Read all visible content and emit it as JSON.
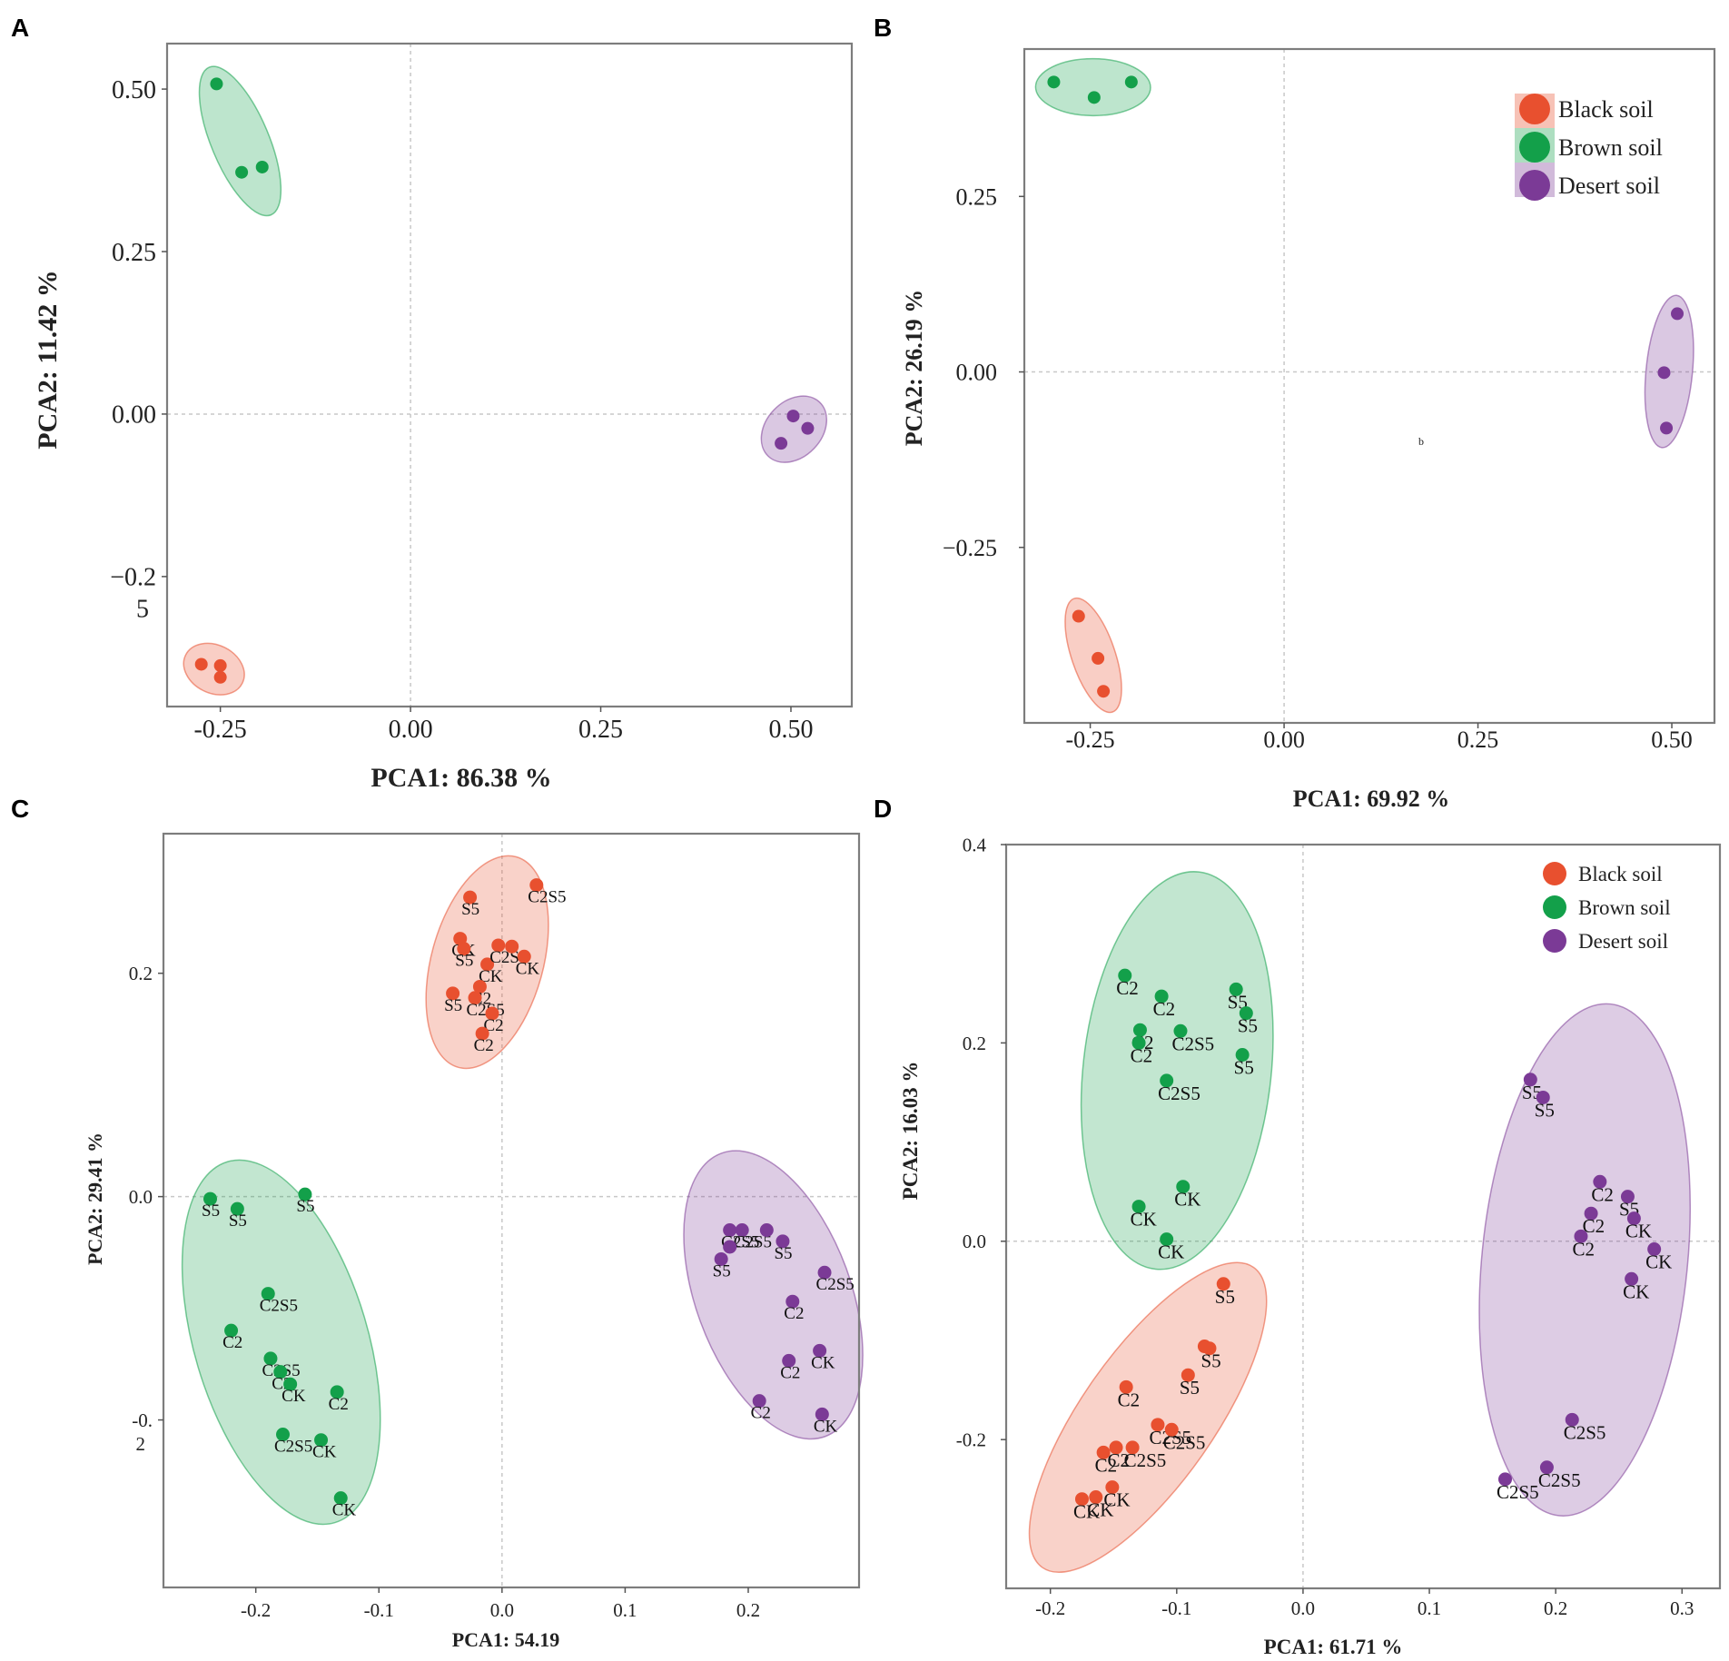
{
  "colors": {
    "black_soil": "#e8502f",
    "brown_soil": "#13a04a",
    "desert_soil": "#7b3a96"
  },
  "chart_data": [
    {
      "panel": "A",
      "type": "scatter",
      "xlabel": "PCA1: 86.38 %",
      "ylabel": "PCA2: 11.42 %",
      "xlim": [
        -0.32,
        0.58
      ],
      "ylim": [
        -0.45,
        0.57
      ],
      "xticks": [
        -0.25,
        0.0,
        0.25,
        0.5
      ],
      "xtick_labels": [
        "-0.25",
        "0.00",
        "0.25",
        "0.50"
      ],
      "yticks": [
        0.5,
        0.25,
        0.0,
        -0.25
      ],
      "ytick_labels": [
        "0.50",
        "0.25",
        "0.00",
        "−0.2\n5"
      ],
      "legend": null,
      "series": [
        {
          "name": "Black soil",
          "color_key": "black_soil",
          "points": [
            [
              -0.275,
              -0.385
            ],
            [
              -0.25,
              -0.387
            ],
            [
              -0.25,
              -0.405
            ]
          ]
        },
        {
          "name": "Brown soil",
          "color_key": "brown_soil",
          "points": [
            [
              -0.255,
              0.508
            ],
            [
              -0.222,
              0.372
            ],
            [
              -0.195,
              0.38
            ]
          ]
        },
        {
          "name": "Desert soil",
          "color_key": "desert_soil",
          "points": [
            [
              0.503,
              -0.003
            ],
            [
              0.522,
              -0.022
            ],
            [
              0.487,
              -0.045
            ]
          ]
        }
      ]
    },
    {
      "panel": "B",
      "type": "scatter",
      "xlabel": "PCA1: 69.92 %",
      "ylabel": "PCA2: 26.19 %",
      "xlim": [
        -0.335,
        0.555
      ],
      "ylim": [
        -0.5,
        0.46
      ],
      "xticks": [
        -0.25,
        0.0,
        0.25,
        0.5
      ],
      "xtick_labels": [
        "-0.25",
        "0.00",
        "0.25",
        "0.50"
      ],
      "yticks": [
        0.25,
        0.0,
        -0.25
      ],
      "ytick_labels": [
        "0.25",
        "0.00",
        "−0.25"
      ],
      "stray_text": "b",
      "legend": {
        "position": "top-right",
        "entries": [
          "Black soil",
          "Brown soil",
          "Desert soil"
        ]
      },
      "series": [
        {
          "name": "Black soil",
          "color_key": "black_soil",
          "points": [
            [
              -0.265,
              -0.348
            ],
            [
              -0.24,
              -0.408
            ],
            [
              -0.233,
              -0.455
            ]
          ]
        },
        {
          "name": "Brown soil",
          "color_key": "brown_soil",
          "points": [
            [
              -0.297,
              0.413
            ],
            [
              -0.245,
              0.391
            ],
            [
              -0.197,
              0.413
            ]
          ]
        },
        {
          "name": "Desert soil",
          "color_key": "desert_soil",
          "points": [
            [
              0.507,
              0.083
            ],
            [
              0.49,
              -0.001
            ],
            [
              0.493,
              -0.08
            ]
          ]
        }
      ]
    },
    {
      "panel": "C",
      "type": "scatter",
      "xlabel": "PCA1: 54.19",
      "ylabel": "PCA2: 29.41 %",
      "xlim": [
        -0.275,
        0.29
      ],
      "ylim": [
        -0.35,
        0.325
      ],
      "xticks": [
        -0.2,
        -0.1,
        0.0,
        0.1,
        0.2
      ],
      "xtick_labels": [
        "-0.2",
        "-0.1",
        "0.0",
        "0.1",
        "0.2"
      ],
      "yticks": [
        0.2,
        0.0,
        -0.2
      ],
      "ytick_labels": [
        "0.2",
        "0.0",
        "-0.\n2"
      ],
      "legend": null,
      "series": [
        {
          "name": "Black soil",
          "color_key": "black_soil",
          "points": [
            {
              "x": -0.026,
              "y": 0.268,
              "label": "S5"
            },
            {
              "x": 0.028,
              "y": 0.279,
              "label": "C2S5"
            },
            {
              "x": -0.034,
              "y": 0.231,
              "label": "CK"
            },
            {
              "x": -0.031,
              "y": 0.222,
              "label": "S5"
            },
            {
              "x": -0.012,
              "y": 0.208,
              "label": "CK"
            },
            {
              "x": -0.003,
              "y": 0.225,
              "label": "C2S5"
            },
            {
              "x": 0.008,
              "y": 0.224,
              "label": ""
            },
            {
              "x": 0.018,
              "y": 0.215,
              "label": "CK"
            },
            {
              "x": -0.018,
              "y": 0.188,
              "label": "C2"
            },
            {
              "x": -0.04,
              "y": 0.182,
              "label": "S5"
            },
            {
              "x": -0.022,
              "y": 0.178,
              "label": "C2S5"
            },
            {
              "x": -0.008,
              "y": 0.164,
              "label": "C2"
            },
            {
              "x": -0.016,
              "y": 0.146,
              "label": "C2"
            }
          ]
        },
        {
          "name": "Brown soil",
          "color_key": "brown_soil",
          "points": [
            {
              "x": -0.237,
              "y": -0.002,
              "label": "S5"
            },
            {
              "x": -0.16,
              "y": 0.002,
              "label": "S5"
            },
            {
              "x": -0.215,
              "y": -0.011,
              "label": "S5"
            },
            {
              "x": -0.19,
              "y": -0.087,
              "label": "C2S5"
            },
            {
              "x": -0.22,
              "y": -0.12,
              "label": "C2"
            },
            {
              "x": -0.188,
              "y": -0.145,
              "label": "C2S5"
            },
            {
              "x": -0.18,
              "y": -0.157,
              "label": "C2"
            },
            {
              "x": -0.172,
              "y": -0.168,
              "label": "CK"
            },
            {
              "x": -0.134,
              "y": -0.175,
              "label": "C2"
            },
            {
              "x": -0.178,
              "y": -0.213,
              "label": "C2S5"
            },
            {
              "x": -0.147,
              "y": -0.218,
              "label": "CK"
            },
            {
              "x": -0.131,
              "y": -0.27,
              "label": "CK"
            }
          ]
        },
        {
          "name": "Desert soil",
          "color_key": "desert_soil",
          "points": [
            {
              "x": 0.185,
              "y": -0.03,
              "label": "C2S5"
            },
            {
              "x": 0.195,
              "y": -0.03,
              "label": "C2S5"
            },
            {
              "x": 0.215,
              "y": -0.03,
              "label": ""
            },
            {
              "x": 0.228,
              "y": -0.04,
              "label": "S5"
            },
            {
              "x": 0.178,
              "y": -0.056,
              "label": "S5"
            },
            {
              "x": 0.185,
              "y": -0.045,
              "label": ""
            },
            {
              "x": 0.262,
              "y": -0.068,
              "label": "C2S5"
            },
            {
              "x": 0.236,
              "y": -0.094,
              "label": "C2"
            },
            {
              "x": 0.258,
              "y": -0.138,
              "label": "CK"
            },
            {
              "x": 0.233,
              "y": -0.147,
              "label": "C2"
            },
            {
              "x": 0.209,
              "y": -0.183,
              "label": "C2"
            },
            {
              "x": 0.26,
              "y": -0.195,
              "label": "CK"
            }
          ]
        }
      ]
    },
    {
      "panel": "D",
      "type": "scatter",
      "xlabel": "PCA1: 61.71 %",
      "ylabel": "PCA2: 16.03 %",
      "xlim": [
        -0.235,
        0.33
      ],
      "ylim": [
        -0.35,
        0.4
      ],
      "xticks": [
        -0.2,
        -0.1,
        0.0,
        0.1,
        0.2,
        0.3
      ],
      "xtick_labels": [
        "-0.2",
        "-0.1",
        "0.0",
        "0.1",
        "0.2",
        "0.3"
      ],
      "yticks": [
        0.4,
        0.2,
        0.0,
        -0.2
      ],
      "ytick_labels": [
        "0.4",
        "0.2",
        "0.0",
        "-0.2"
      ],
      "legend": {
        "position": "top-right",
        "entries": [
          "Black soil",
          "Brown soil",
          "Desert soil"
        ]
      },
      "series": [
        {
          "name": "Black soil",
          "color_key": "black_soil",
          "points": [
            {
              "x": -0.063,
              "y": -0.043,
              "label": "S5"
            },
            {
              "x": -0.074,
              "y": -0.108,
              "label": "S5"
            },
            {
              "x": -0.078,
              "y": -0.106,
              "label": ""
            },
            {
              "x": -0.091,
              "y": -0.135,
              "label": "S5"
            },
            {
              "x": -0.14,
              "y": -0.147,
              "label": "C2"
            },
            {
              "x": -0.115,
              "y": -0.185,
              "label": "C2S5"
            },
            {
              "x": -0.104,
              "y": -0.19,
              "label": "C2S5"
            },
            {
              "x": -0.135,
              "y": -0.208,
              "label": "C2S5"
            },
            {
              "x": -0.158,
              "y": -0.213,
              "label": "C2"
            },
            {
              "x": -0.148,
              "y": -0.208,
              "label": "C2"
            },
            {
              "x": -0.151,
              "y": -0.248,
              "label": "CK"
            },
            {
              "x": -0.164,
              "y": -0.258,
              "label": "CK"
            },
            {
              "x": -0.175,
              "y": -0.26,
              "label": "CK"
            }
          ]
        },
        {
          "name": "Brown soil",
          "color_key": "brown_soil",
          "points": [
            {
              "x": -0.141,
              "y": 0.268,
              "label": "C2"
            },
            {
              "x": -0.112,
              "y": 0.247,
              "label": "C2"
            },
            {
              "x": -0.053,
              "y": 0.254,
              "label": "S5"
            },
            {
              "x": -0.045,
              "y": 0.23,
              "label": "S5"
            },
            {
              "x": -0.129,
              "y": 0.213,
              "label": "C2"
            },
            {
              "x": -0.13,
              "y": 0.2,
              "label": "C2"
            },
            {
              "x": -0.097,
              "y": 0.212,
              "label": "C2S5"
            },
            {
              "x": -0.048,
              "y": 0.188,
              "label": "S5"
            },
            {
              "x": -0.108,
              "y": 0.162,
              "label": "C2S5"
            },
            {
              "x": -0.095,
              "y": 0.055,
              "label": "CK"
            },
            {
              "x": -0.13,
              "y": 0.035,
              "label": "CK"
            },
            {
              "x": -0.108,
              "y": 0.002,
              "label": "CK"
            }
          ]
        },
        {
          "name": "Desert soil",
          "color_key": "desert_soil",
          "points": [
            {
              "x": 0.18,
              "y": 0.163,
              "label": "S5"
            },
            {
              "x": 0.19,
              "y": 0.145,
              "label": "S5"
            },
            {
              "x": 0.235,
              "y": 0.06,
              "label": "C2"
            },
            {
              "x": 0.257,
              "y": 0.045,
              "label": "S5"
            },
            {
              "x": 0.228,
              "y": 0.028,
              "label": "C2"
            },
            {
              "x": 0.262,
              "y": 0.023,
              "label": "CK"
            },
            {
              "x": 0.22,
              "y": 0.005,
              "label": "C2"
            },
            {
              "x": 0.278,
              "y": -0.008,
              "label": "CK"
            },
            {
              "x": 0.26,
              "y": -0.038,
              "label": "CK"
            },
            {
              "x": 0.213,
              "y": -0.18,
              "label": "C2S5"
            },
            {
              "x": 0.193,
              "y": -0.228,
              "label": "C2S5"
            },
            {
              "x": 0.16,
              "y": -0.24,
              "label": "C2S5"
            }
          ]
        }
      ]
    }
  ]
}
